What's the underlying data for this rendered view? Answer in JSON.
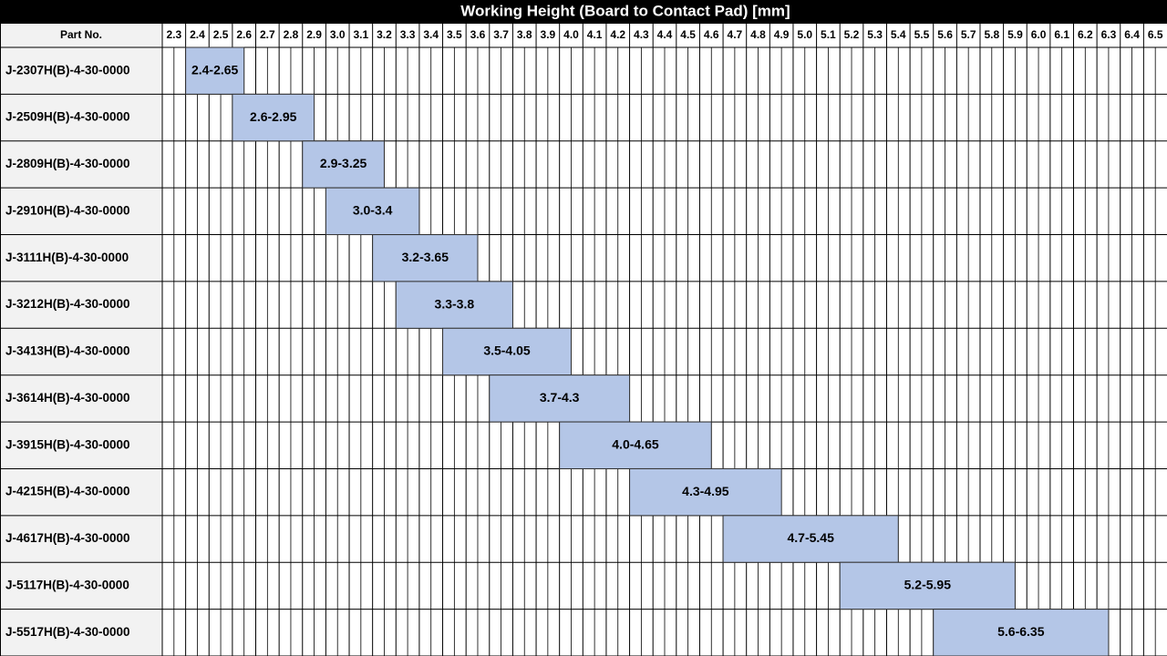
{
  "chart_data": {
    "type": "range-bar",
    "title": "Working Height (Board to Contact Pad) [mm]",
    "category_header": "Part No.",
    "categories": [
      "J-2307H(B)-4-30-0000",
      "J-2509H(B)-4-30-0000",
      "J-2809H(B)-4-30-0000",
      "J-2910H(B)-4-30-0000",
      "J-3111H(B)-4-30-0000",
      "J-3212H(B)-4-30-0000",
      "J-3413H(B)-4-30-0000",
      "J-3614H(B)-4-30-0000",
      "J-3915H(B)-4-30-0000",
      "J-4215H(B)-4-30-0000",
      "J-4617H(B)-4-30-0000",
      "J-5117H(B)-4-30-0000",
      "J-5517H(B)-4-30-0000"
    ],
    "starts": [
      2.4,
      2.6,
      2.9,
      3.0,
      3.2,
      3.3,
      3.5,
      3.7,
      4.0,
      4.3,
      4.7,
      5.2,
      5.6
    ],
    "ends": [
      2.65,
      2.95,
      3.25,
      3.4,
      3.65,
      3.8,
      4.05,
      4.3,
      4.65,
      4.95,
      5.45,
      5.95,
      6.35
    ],
    "value_labels": [
      "2.4-2.65",
      "2.6-2.95",
      "2.9-3.25",
      "3.0-3.4",
      "3.2-3.65",
      "3.3-3.8",
      "3.5-4.05",
      "3.7-4.3",
      "4.0-4.65",
      "4.3-4.95",
      "4.7-5.45",
      "5.2-5.95",
      "5.6-6.35"
    ],
    "color": "#b4c6e7",
    "xlim": [
      2.3,
      6.6
    ],
    "xticks": [
      2.3,
      2.4,
      2.5,
      2.6,
      2.7,
      2.8,
      2.9,
      {
        "value": 3,
        "label": "3.0"
      },
      3.1,
      3.2,
      3.3,
      3.4,
      3.5,
      3.6,
      3.7,
      3.8,
      3.9,
      {
        "value": 4,
        "label": "4.0"
      },
      4.1,
      4.2,
      4.3,
      4.4,
      4.5,
      4.6,
      4.7,
      4.8,
      4.9,
      {
        "value": 5,
        "label": "5.0"
      },
      5.1,
      5.2,
      5.3,
      5.4,
      5.5,
      5.6,
      5.7,
      5.8,
      5.9,
      {
        "value": 6,
        "label": "6.0"
      },
      6.1,
      6.2,
      6.3,
      6.4,
      6.5
    ]
  }
}
